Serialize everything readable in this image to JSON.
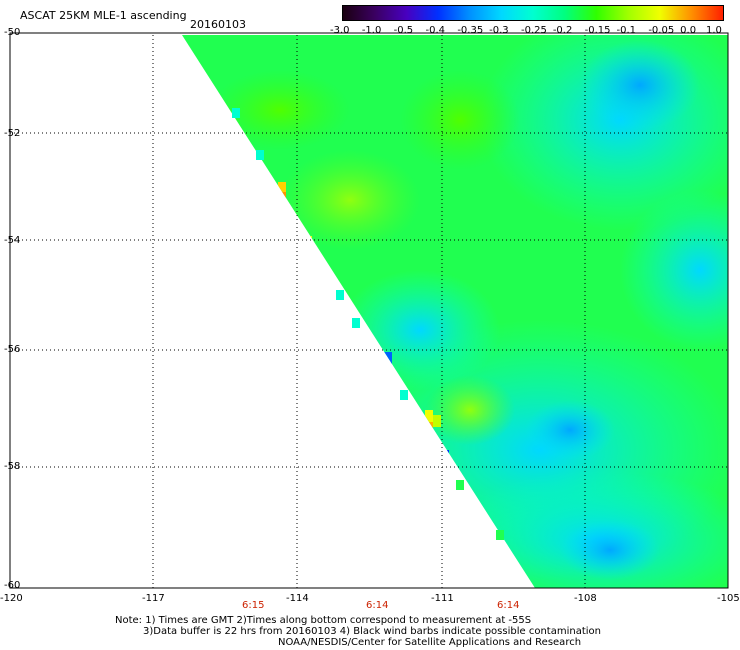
{
  "title": "ASCAT 25KM MLE-1 ascending",
  "date": "20160103",
  "colorbar": {
    "labels": [
      "-3.0",
      "-1.0",
      "-0.5",
      "-0.4",
      "-0.35",
      "-0.3",
      "-0.25",
      "-0.2",
      "-0.15",
      "-0.1",
      "-0.05",
      "0.0",
      "1.0"
    ],
    "colors": [
      "#1a0010",
      "#3a0060",
      "#4800c0",
      "#0030ff",
      "#0090ff",
      "#00d8ff",
      "#00ffd0",
      "#00ff80",
      "#30ff00",
      "#a0ff00",
      "#f0ff00",
      "#ff9000",
      "#ff2000"
    ]
  },
  "lat_labels": [
    "-50",
    "-52",
    "-54",
    "-56",
    "-58",
    "-60"
  ],
  "lon_labels": [
    "-120",
    "-117",
    "-114",
    "-111",
    "-108",
    "-105"
  ],
  "time_labels": [
    "6:15",
    "6:14",
    "6:14"
  ],
  "notes": [
    "Note: 1) Times are GMT 2)Times along bottom correspond to measurement at -55S",
    "3)Data buffer is 22 hrs from 20160103 4) Black wind barbs indicate possible contamination",
    "NOAA/NESDIS/Center for Satellite Applications and Research"
  ]
}
